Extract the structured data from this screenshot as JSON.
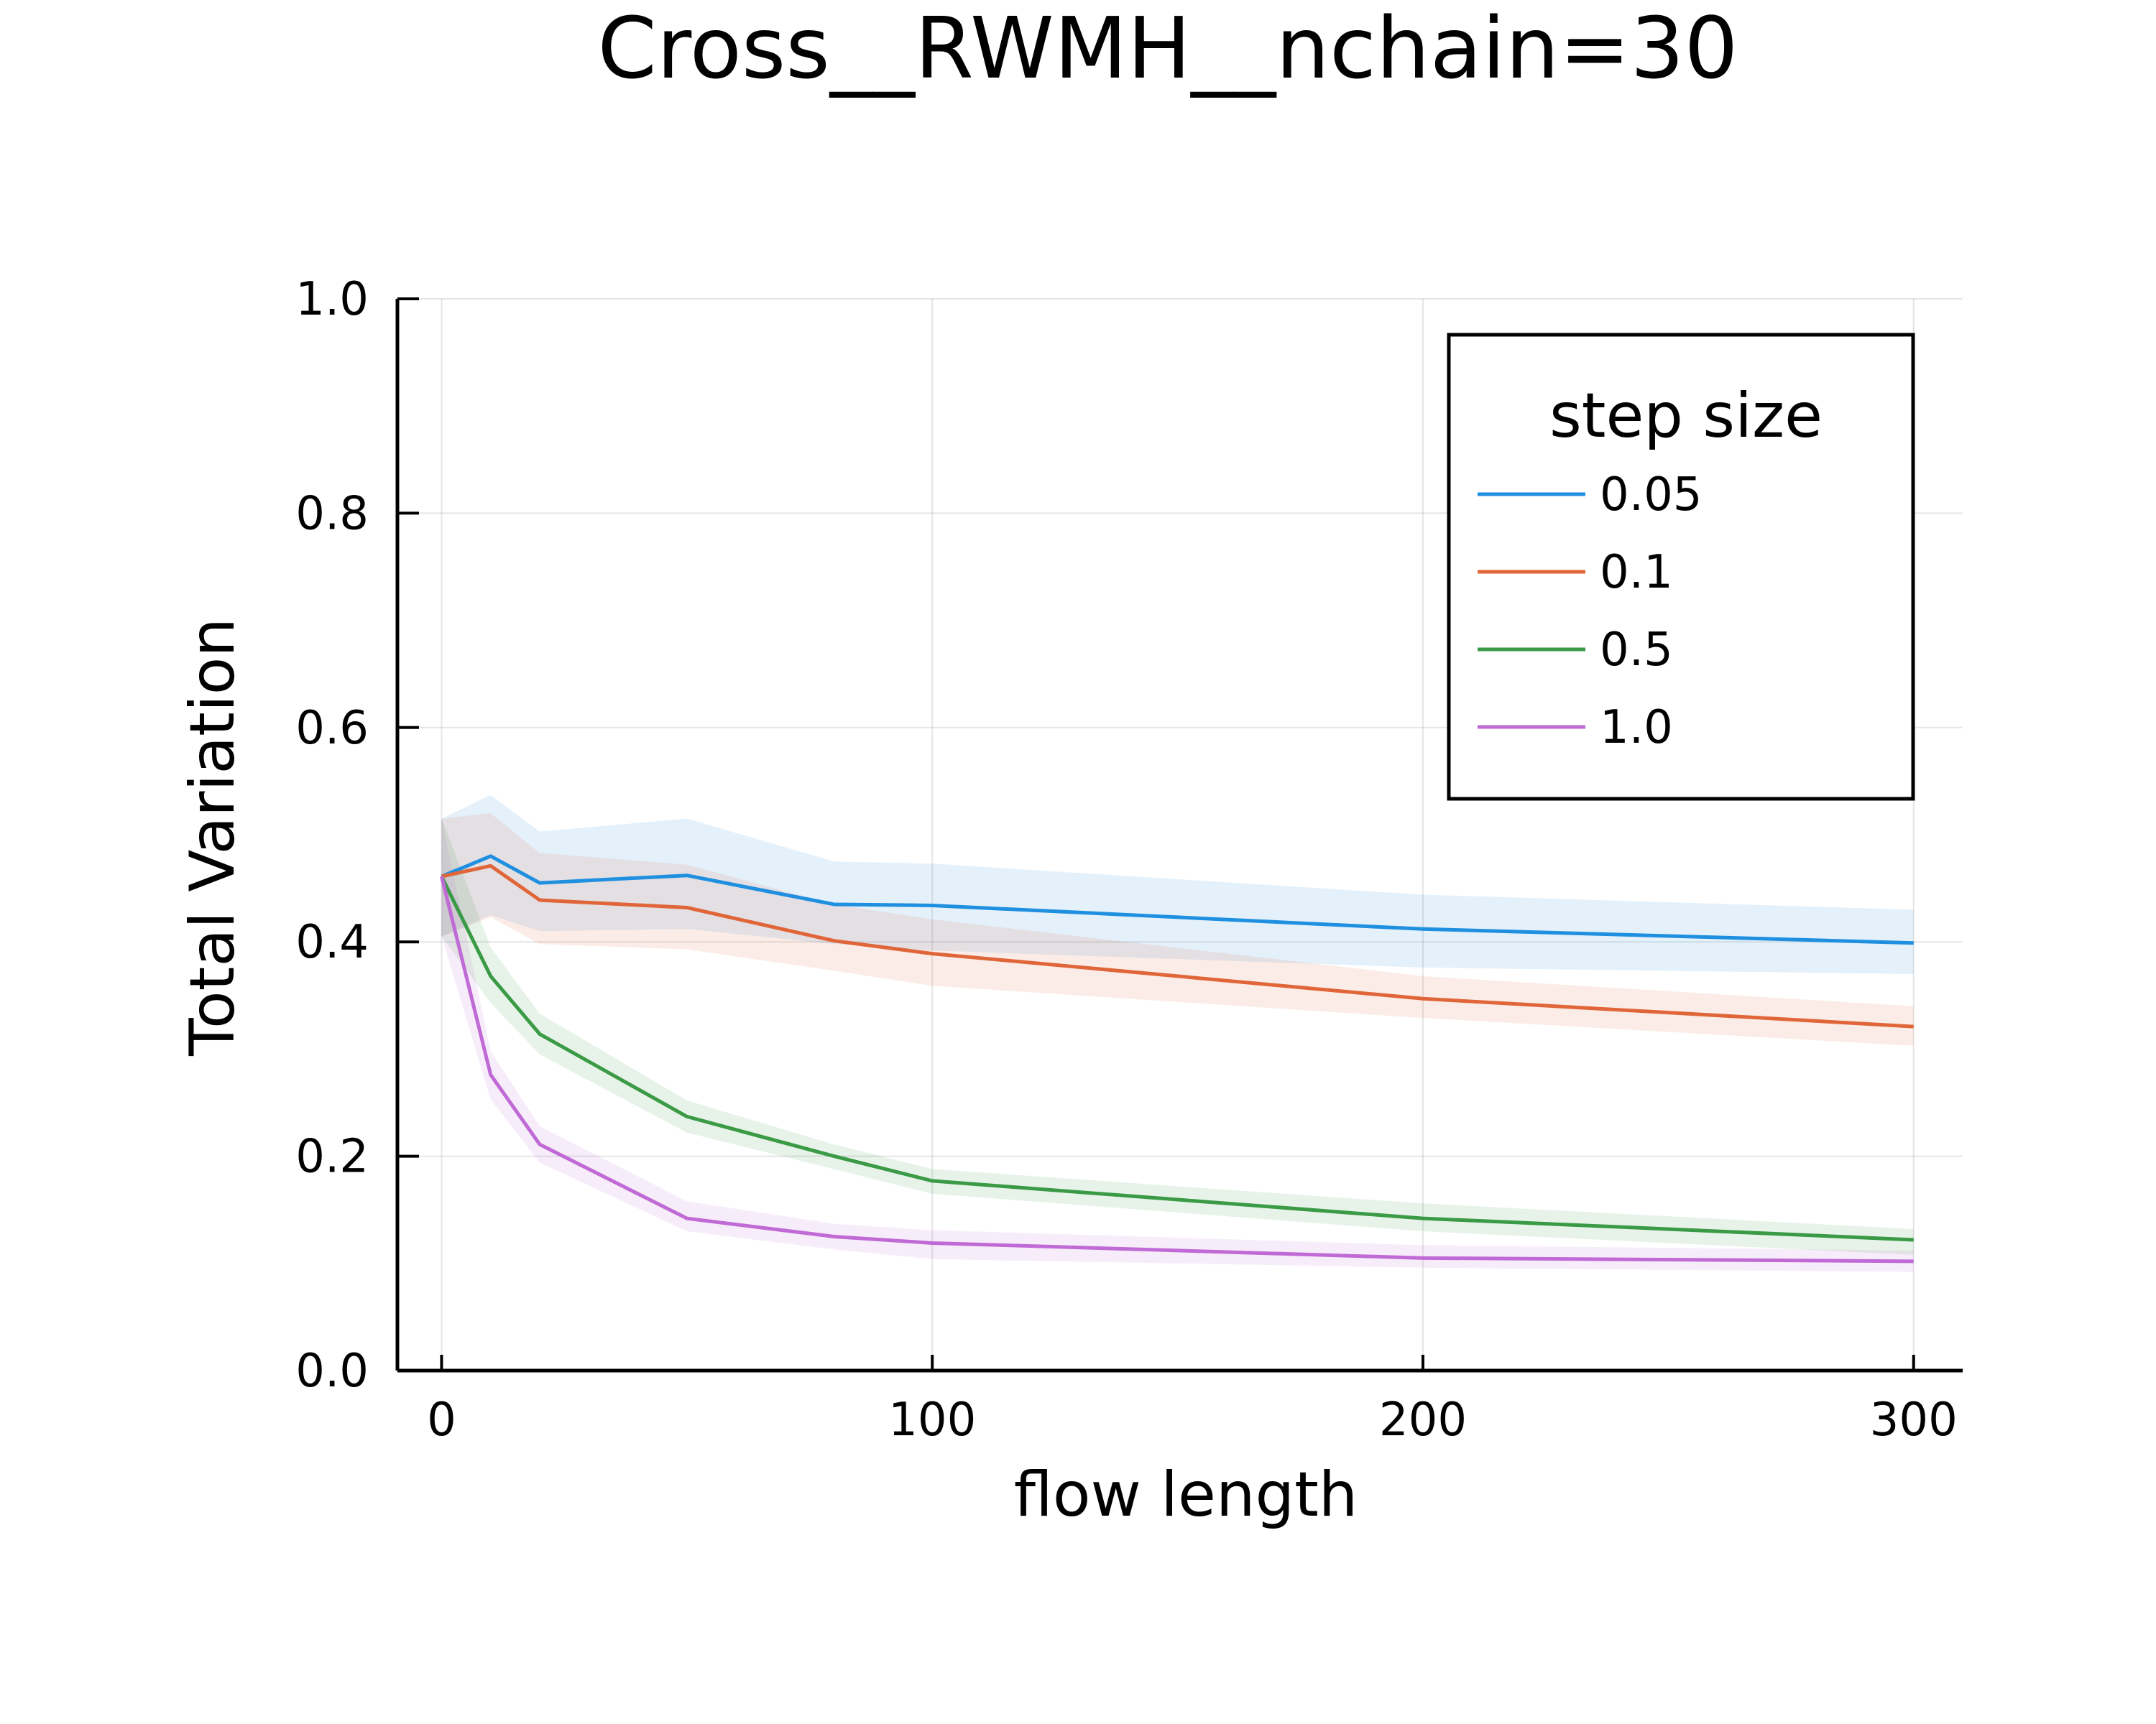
{
  "chart_data": {
    "type": "line",
    "title": "Cross__RWMH__nchain=30",
    "xlabel": "flow length",
    "ylabel": "Total Variation",
    "xlim": [
      -9,
      310
    ],
    "ylim": [
      0.0,
      1.0
    ],
    "xticks": [
      0,
      100,
      200,
      300
    ],
    "xtick_labels": [
      "0",
      "100",
      "200",
      "300"
    ],
    "yticks": [
      0.0,
      0.2,
      0.4,
      0.6,
      0.8,
      1.0
    ],
    "ytick_labels": [
      "0.0",
      "0.2",
      "0.4",
      "0.6",
      "0.8",
      "1.0"
    ],
    "grid": true,
    "legend": {
      "title": "step size",
      "position": "top-right"
    },
    "x": [
      0,
      10,
      20,
      50,
      80,
      100,
      200,
      300
    ],
    "series": [
      {
        "name": "0.05",
        "color": "#1f8fe0",
        "values": [
          0.461,
          0.48,
          0.455,
          0.462,
          0.435,
          0.434,
          0.412,
          0.399
        ],
        "upper": [
          0.515,
          0.537,
          0.503,
          0.515,
          0.475,
          0.473,
          0.444,
          0.43
        ],
        "lower": [
          0.405,
          0.425,
          0.41,
          0.412,
          0.398,
          0.392,
          0.376,
          0.37
        ]
      },
      {
        "name": "0.1",
        "color": "#e0663a",
        "values": [
          0.461,
          0.471,
          0.439,
          0.432,
          0.401,
          0.389,
          0.347,
          0.321
        ],
        "upper": [
          0.515,
          0.52,
          0.483,
          0.472,
          0.435,
          0.421,
          0.368,
          0.34
        ],
        "lower": [
          0.405,
          0.423,
          0.398,
          0.393,
          0.373,
          0.359,
          0.329,
          0.303
        ]
      },
      {
        "name": "0.5",
        "color": "#3a9a45",
        "values": [
          0.461,
          0.368,
          0.314,
          0.237,
          0.2,
          0.177,
          0.142,
          0.122
        ],
        "upper": [
          0.515,
          0.395,
          0.333,
          0.252,
          0.211,
          0.188,
          0.156,
          0.132
        ],
        "lower": [
          0.405,
          0.343,
          0.295,
          0.222,
          0.188,
          0.165,
          0.13,
          0.108
        ]
      },
      {
        "name": "1.0",
        "color": "#c06ad6",
        "values": [
          0.461,
          0.276,
          0.211,
          0.142,
          0.125,
          0.119,
          0.105,
          0.102
        ],
        "upper": [
          0.515,
          0.298,
          0.228,
          0.158,
          0.137,
          0.131,
          0.117,
          0.112
        ],
        "lower": [
          0.405,
          0.253,
          0.194,
          0.13,
          0.113,
          0.104,
          0.096,
          0.092
        ]
      }
    ]
  }
}
